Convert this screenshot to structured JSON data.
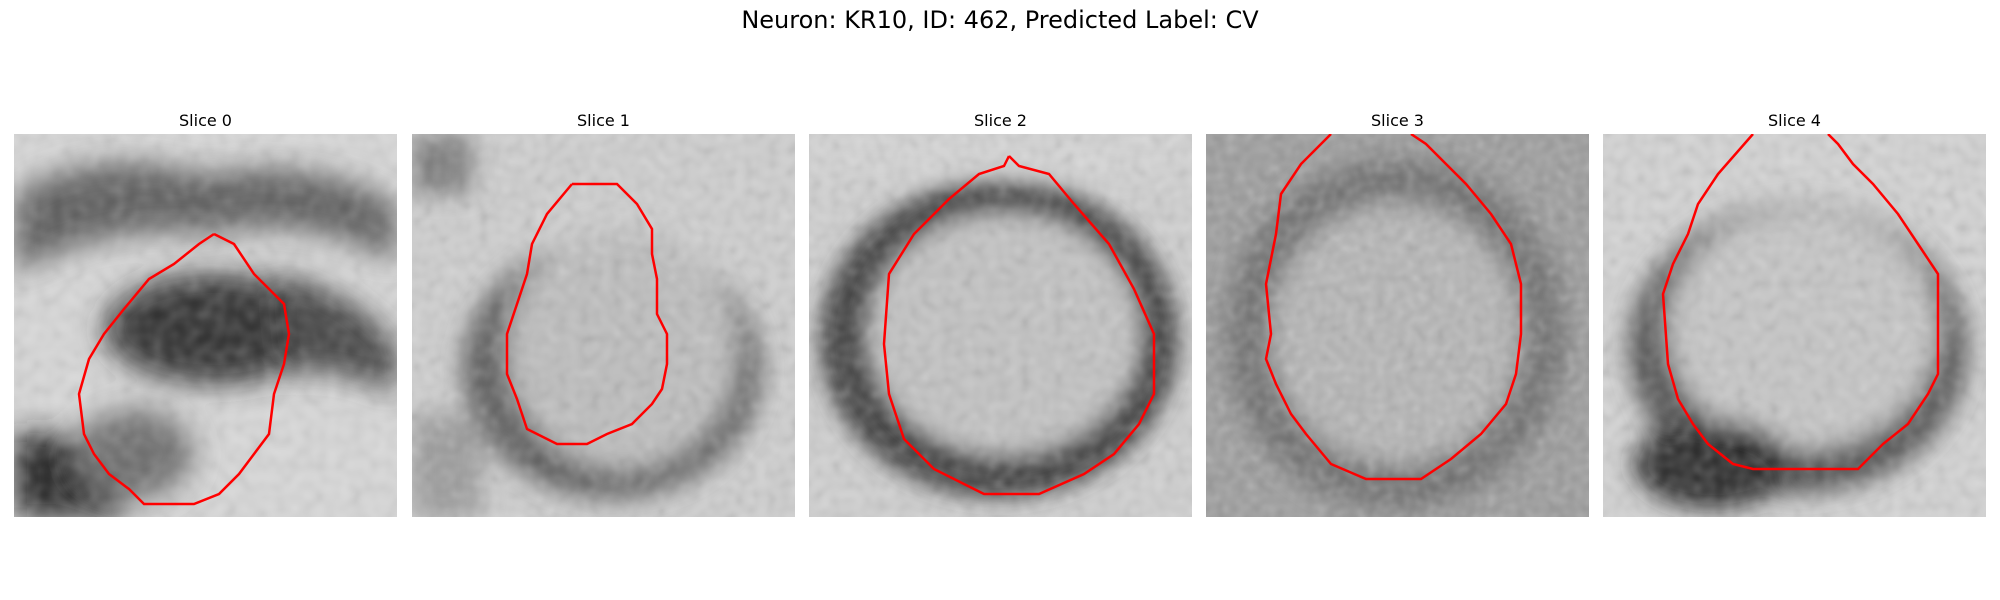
{
  "figure": {
    "title": "Neuron: KR10, ID: 462, Predicted Label: CV"
  },
  "panels": [
    {
      "title": "Slice 0",
      "image": "grayscale-micrograph-slice-0",
      "contour_color": "#ff0000"
    },
    {
      "title": "Slice 1",
      "image": "grayscale-micrograph-slice-1",
      "contour_color": "#ff0000"
    },
    {
      "title": "Slice 2",
      "image": "grayscale-micrograph-slice-2",
      "contour_color": "#ff0000"
    },
    {
      "title": "Slice 3",
      "image": "grayscale-micrograph-slice-3",
      "contour_color": "#ff0000"
    },
    {
      "title": "Slice 4",
      "image": "grayscale-micrograph-slice-4",
      "contour_color": "#ff0000"
    }
  ]
}
